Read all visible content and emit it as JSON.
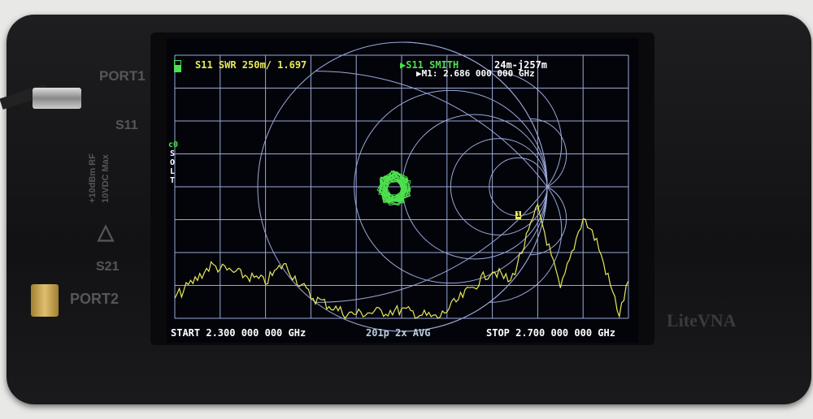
{
  "device": {
    "brand": "LiteVNA",
    "port1": "PORT1",
    "port2": "PORT2",
    "s11": "S11",
    "s21": "S21",
    "rating1": "+10dBm RF",
    "rating2": "10VDC Max"
  },
  "screen": {
    "trace1": "S11 SWR 250m/ 1.697",
    "trace2_name": "S11 SMITH",
    "trace2_value": "24m-j257m",
    "marker": "M1: 2.686 000 000 GHz",
    "marker_label": "1",
    "cal": [
      "c0",
      "S",
      "O",
      "L",
      "T"
    ],
    "start": "START 2.300 000 000 GHz",
    "points": "201p 2x AVG",
    "stop": "STOP 2.700 000 000 GHz",
    "colors": {
      "trace1": "#e8e85a",
      "trace2": "#4ee04e",
      "grid": "#9aa8d8",
      "text": "#ffffff"
    }
  }
}
